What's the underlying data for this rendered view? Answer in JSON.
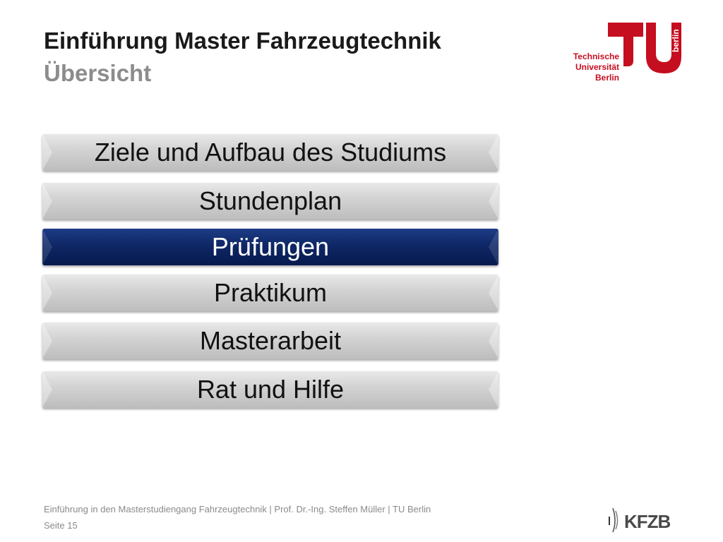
{
  "header": {
    "title": "Einführung Master Fahrzeugtechnik",
    "subtitle": "Übersicht"
  },
  "logo": {
    "icon": "tu-berlin-logo-icon",
    "line1": "Technische",
    "line2": "Universität",
    "line3": "Berlin",
    "side": "berlin",
    "brand_color": "#c50e1f"
  },
  "menu": {
    "items": [
      {
        "label": "Ziele und Aufbau des Studiums",
        "active": false
      },
      {
        "label": "Stundenplan",
        "active": false
      },
      {
        "label": "Prüfungen",
        "active": true
      },
      {
        "label": "Praktikum",
        "active": false
      },
      {
        "label": "Masterarbeit",
        "active": false
      },
      {
        "label": "Rat und Hilfe",
        "active": false
      }
    ],
    "active_color": "#0f2766",
    "inactive_color": "#d4d4d4"
  },
  "footer": {
    "text": "Einführung in den Masterstudiengang Fahrzeugtechnik | Prof. Dr.-Ing. Steffen Müller | TU Berlin",
    "page": "Seite 15"
  },
  "kfzb_logo": {
    "icon": "kfzb-logo-icon",
    "text": "KFZB"
  }
}
